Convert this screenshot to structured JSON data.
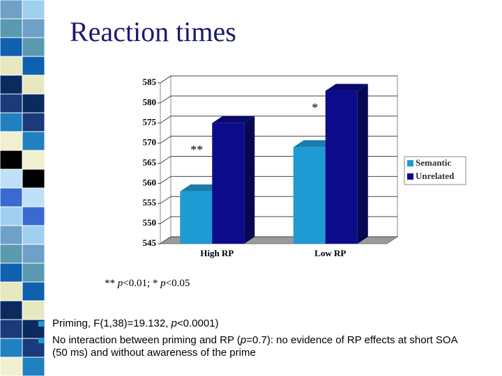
{
  "title": "Reaction times",
  "chart_data": {
    "type": "bar3d",
    "categories": [
      "High RP",
      "Low RP"
    ],
    "series": [
      {
        "name": "Semantic",
        "color": "#1f9bd4",
        "values": [
          558,
          569
        ]
      },
      {
        "name": "Unrelated",
        "color": "#0c0c8a",
        "values": [
          575,
          583
        ]
      }
    ],
    "ylim": [
      545,
      585
    ],
    "yticks": [
      545,
      550,
      555,
      560,
      565,
      570,
      575,
      580,
      585
    ],
    "grid": true,
    "legend": "right",
    "annotations": [
      "**",
      "*"
    ]
  },
  "footnote": [
    "** ",
    "p",
    "<0.01; * ",
    "p",
    "<0.05"
  ],
  "bullets": [
    [
      "Priming, F(1,38)=19.132, ",
      "p",
      "<0.0001)"
    ],
    [
      "No interaction between priming and RP (",
      "p",
      "=0.7): no evidence of RP effects at short SOA (50 ms) and without awareness of the prime"
    ]
  ]
}
